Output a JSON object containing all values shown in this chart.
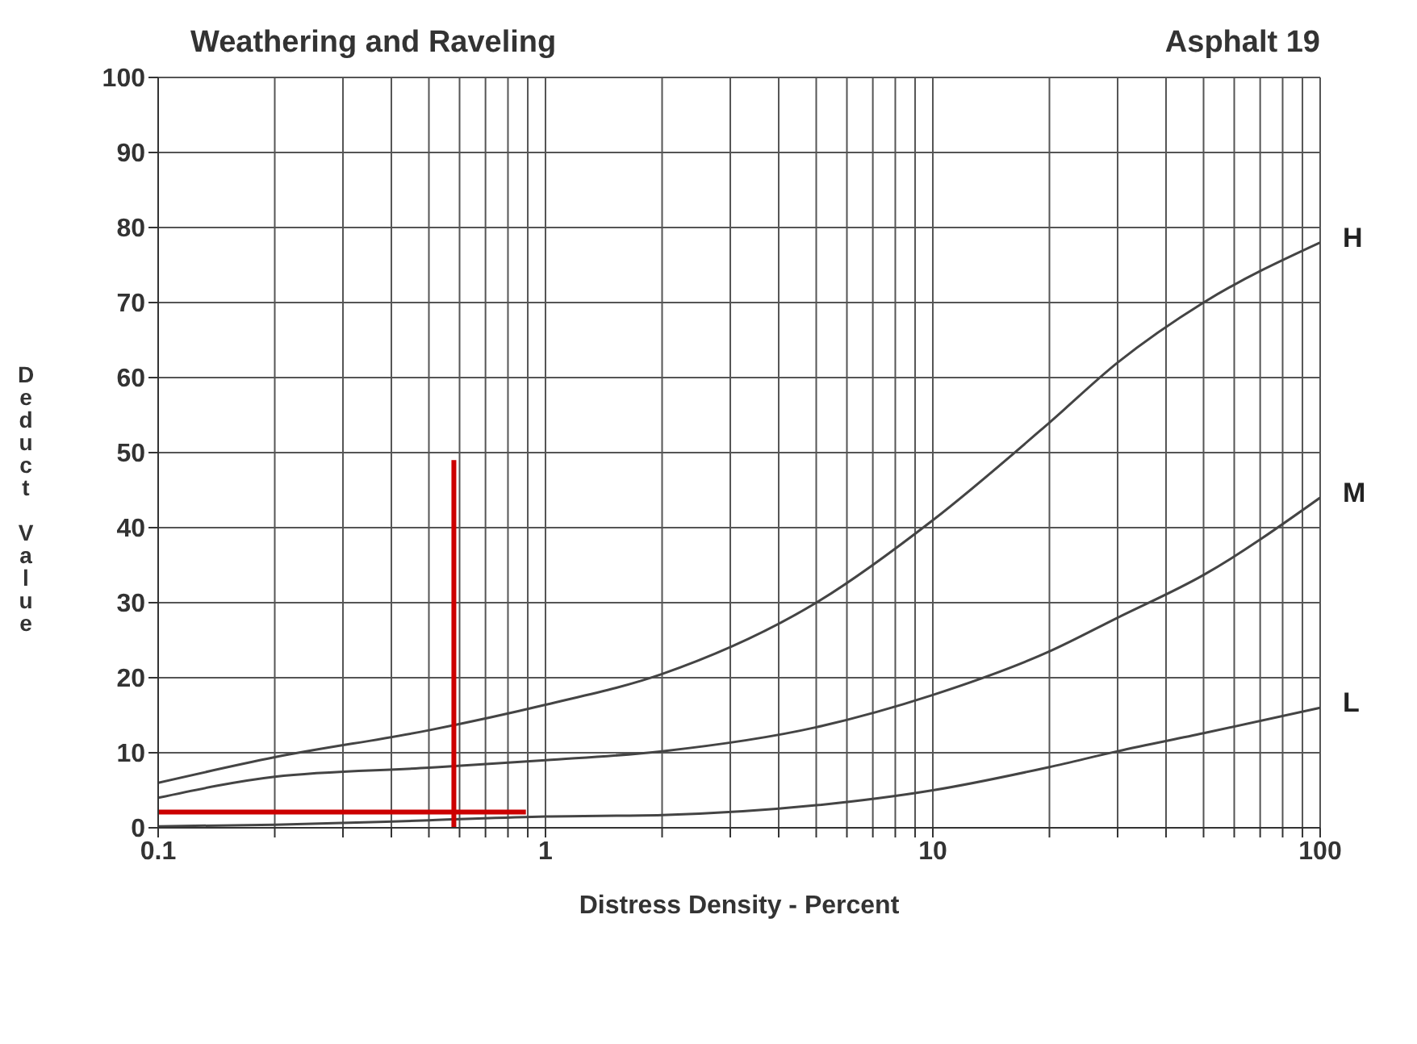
{
  "chart_data": {
    "type": "line",
    "title": "Weathering and Raveling",
    "annotations": [
      "Asphalt 19"
    ],
    "xlabel": "Distress Density - Percent",
    "ylabel": "Deduct Value",
    "log": "x",
    "xlim": [
      0.1,
      100
    ],
    "xticks": [
      0.1,
      {
        "value": 0.2,
        "label": null
      },
      {
        "value": 0.3,
        "label": null
      },
      {
        "value": 0.4,
        "label": null
      },
      {
        "value": 0.5,
        "label": null
      },
      {
        "value": 0.6,
        "label": null
      },
      {
        "value": 0.7,
        "label": null
      },
      {
        "value": 0.8,
        "label": null
      },
      {
        "value": 0.9,
        "label": null
      },
      1,
      {
        "value": 2,
        "label": null
      },
      {
        "value": 3,
        "label": null
      },
      {
        "value": 4,
        "label": null
      },
      {
        "value": 5,
        "label": null
      },
      {
        "value": 6,
        "label": null
      },
      {
        "value": 7,
        "label": null
      },
      {
        "value": 8,
        "label": null
      },
      {
        "value": 9,
        "label": null
      },
      10,
      {
        "value": 20,
        "label": null
      },
      {
        "value": 30,
        "label": null
      },
      {
        "value": 40,
        "label": null
      },
      {
        "value": 50,
        "label": null
      },
      {
        "value": 60,
        "label": null
      },
      {
        "value": 70,
        "label": null
      },
      {
        "value": 80,
        "label": null
      },
      {
        "value": 90,
        "label": null
      },
      100
    ],
    "ylim": [
      0,
      100
    ],
    "yticks": [
      0,
      10,
      20,
      30,
      40,
      50,
      60,
      70,
      80,
      90,
      100
    ],
    "grid": true,
    "marker": "none",
    "line_style": "solid",
    "x": [
      0.1,
      0.2,
      0.5,
      1,
      2,
      5,
      10,
      20,
      30,
      50,
      100
    ],
    "series": [
      {
        "name": "H",
        "color": "#444444",
        "values": [
          6,
          9.4,
          13,
          16.4,
          20.5,
          30,
          41,
          54,
          62,
          70,
          78
        ]
      },
      {
        "name": "M",
        "color": "#444444",
        "values": [
          4,
          6.8,
          8,
          9,
          10.2,
          13.4,
          17.7,
          23.5,
          28,
          33.7,
          44
        ]
      },
      {
        "name": "L",
        "color": "#444444",
        "values": [
          0.2,
          0.4,
          1,
          1.5,
          1.7,
          3,
          5,
          8.1,
          10.2,
          12.6,
          16
        ]
      },
      {
        "color": "#cc0000",
        "x": [
          0.58,
          0.58
        ],
        "values": [
          0,
          49
        ]
      },
      {
        "color": "#cc0000",
        "x": [
          0.1,
          0.89
        ],
        "values": [
          2.1,
          2.1
        ]
      }
    ]
  }
}
